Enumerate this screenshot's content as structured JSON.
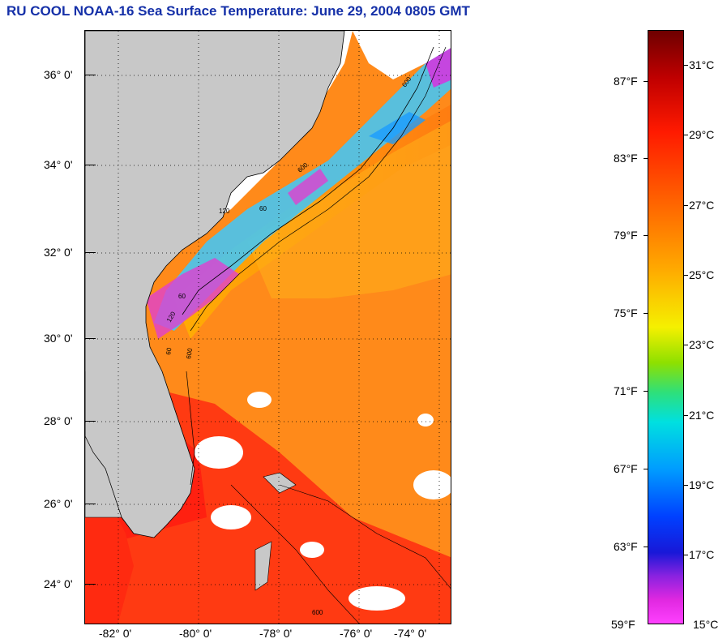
{
  "title": "RU COOL  NOAA-16  Sea Surface Temperature:  June 29, 2004 0805 GMT",
  "lat_labels": [
    "36° 0'",
    "34° 0'",
    "32° 0'",
    "30° 0'",
    "28° 0'",
    "26° 0'",
    "24° 0'"
  ],
  "lon_labels": [
    "-82° 0'",
    "-80° 0'",
    "-78° 0'",
    "-76° 0'",
    "-74° 0'"
  ],
  "colorbar": {
    "fahrenheit": [
      "87°F",
      "83°F",
      "79°F",
      "75°F",
      "71°F",
      "67°F",
      "63°F",
      "59°F"
    ],
    "celsius": [
      "31°C",
      "29°C",
      "27°C",
      "25°C",
      "23°C",
      "21°C",
      "19°C",
      "17°C",
      "15°C"
    ]
  },
  "contour_labels": [
    "600",
    "120",
    "60",
    "600",
    "60",
    "120",
    "600",
    "60",
    "600"
  ],
  "colors": {
    "title": "#1530a8",
    "land": "#c8c8c8",
    "warm": "#ff7a10",
    "hot": "#ff3010",
    "cool_shelf": "#3cc8ff",
    "cloud": "#ffffff"
  }
}
